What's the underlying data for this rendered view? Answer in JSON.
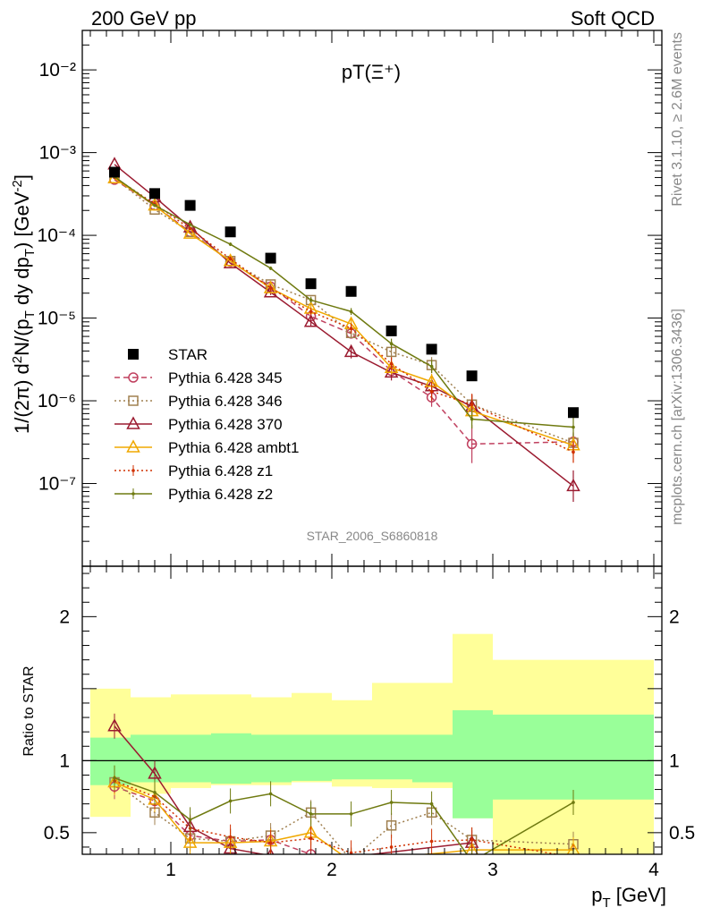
{
  "header": {
    "left": "200 GeV pp",
    "right": "Soft QCD"
  },
  "side_labels": {
    "rivet": "Rivet 3.1.10, ≥ 2.6M events",
    "mcplots": "mcplots.cern.ch [arXiv:1306.3436]"
  },
  "watermark": "STAR_2006_S6860818",
  "chart_data": [
    {
      "type": "scatter",
      "title": "pT(Ξ⁺)",
      "ylabel": "1/(2π) d²N/(p_T dy dp_T) [GeV⁻²]",
      "xlim": [
        0.45,
        4.05
      ],
      "ylim": [
        1e-08,
        0.03
      ],
      "yscale": "log",
      "x_ticks": [
        1,
        2,
        3,
        4
      ],
      "y_ticks": [
        {
          "v": 1e-07,
          "label": "10⁻⁷"
        },
        {
          "v": 1e-06,
          "label": "10⁻⁶"
        },
        {
          "v": 1e-05,
          "label": "10⁻⁵"
        },
        {
          "v": 0.0001,
          "label": "10⁻⁴"
        },
        {
          "v": 0.001,
          "label": "10⁻³"
        },
        {
          "v": 0.01,
          "label": "10⁻²"
        }
      ],
      "legend_position": "bottom-left",
      "star": {
        "name": "STAR",
        "x": [
          0.65,
          0.9,
          1.12,
          1.37,
          1.62,
          1.87,
          2.12,
          2.37,
          2.62,
          2.87,
          3.5
        ],
        "y": [
          0.00058,
          0.00032,
          0.00023,
          0.00011,
          5.3e-05,
          2.6e-05,
          2.1e-05,
          7e-06,
          4.2e-06,
          2e-06,
          7.2e-07
        ],
        "bins": [
          [
            0.5,
            0.75
          ],
          [
            0.75,
            1.0
          ],
          [
            1.0,
            1.25
          ],
          [
            1.25,
            1.5
          ],
          [
            1.5,
            1.75
          ],
          [
            1.75,
            2.0
          ],
          [
            2.0,
            2.25
          ],
          [
            2.25,
            2.5
          ],
          [
            2.5,
            2.75
          ],
          [
            2.75,
            3.0
          ],
          [
            3.0,
            4.0
          ]
        ]
      },
      "series": [
        {
          "name": "Pythia 6.428 345",
          "color": "#c0405f",
          "dash": "6,4",
          "marker": "circle",
          "x": [
            0.65,
            0.9,
            1.12,
            1.37,
            1.62,
            1.87,
            2.12,
            2.37,
            2.62,
            2.87,
            3.5
          ],
          "y": [
            0.00047,
            0.00023,
            0.00011,
            4.8e-05,
            2.4e-05,
            1.05e-05,
            6.5e-06,
            2.3e-06,
            1.1e-06,
            3e-07,
            3.2e-07
          ],
          "err": [
            0,
            0,
            0,
            0,
            0.1,
            0.1,
            0.15,
            0.2,
            0.3,
            0.7,
            0.3
          ]
        },
        {
          "name": "Pythia 6.428 346",
          "color": "#a08050",
          "dash": "2,3",
          "marker": "square",
          "x": [
            0.65,
            0.9,
            1.12,
            1.37,
            1.62,
            1.87,
            2.12,
            2.37,
            2.62,
            2.87,
            3.5
          ],
          "y": [
            0.00049,
            0.000205,
            0.00011,
            4.9e-05,
            2.55e-05,
            1.65e-05,
            6.6e-06,
            3.9e-06,
            2.7e-06,
            9e-07,
            3.1e-07
          ],
          "err": [
            0,
            0,
            0,
            0,
            0.08,
            0.1,
            0.15,
            0.25,
            0.25,
            0.3,
            0.3
          ]
        },
        {
          "name": "Pythia 6.428 370",
          "color": "#9b1b30",
          "dash": "",
          "marker": "triangle",
          "x": [
            0.65,
            0.9,
            1.12,
            1.37,
            1.62,
            1.87,
            2.12,
            2.37,
            2.62,
            2.87,
            3.5
          ],
          "y": [
            0.00072,
            0.00029,
            0.000125,
            4.6e-05,
            2.05e-05,
            9e-06,
            3.9e-06,
            2.2e-06,
            1.5e-06,
            8.5e-07,
            9.3e-08
          ],
          "err": [
            0,
            0,
            0,
            0,
            0.08,
            0.12,
            0.2,
            0.25,
            0.3,
            0.4,
            0.55
          ]
        },
        {
          "name": "Pythia 6.428 ambt1",
          "color": "#f0a800",
          "dash": "",
          "marker": "triangle",
          "x": [
            0.65,
            0.9,
            1.12,
            1.37,
            1.62,
            1.87,
            2.12,
            2.37,
            2.62,
            2.87,
            3.5
          ],
          "y": [
            0.00049,
            0.00023,
            0.000105,
            4.9e-05,
            2.3e-05,
            1.3e-05,
            8.5e-06,
            2.5e-06,
            1.7e-06,
            7.5e-07,
            2.9e-07
          ],
          "err": [
            0,
            0,
            0,
            0,
            0.08,
            0.1,
            0.15,
            0.2,
            0.25,
            0.35,
            0.3
          ]
        },
        {
          "name": "Pythia 6.428 z1",
          "color": "#d03000",
          "dash": "2,3",
          "marker": "dot",
          "x": [
            0.65,
            0.9,
            1.12,
            1.37,
            1.62,
            1.87,
            2.12,
            2.37,
            2.62,
            2.87,
            3.5
          ],
          "y": [
            0.0005,
            0.00024,
            0.00012,
            5.2e-05,
            2.3e-05,
            1.2e-05,
            7.5e-06,
            2.8e-06,
            1.3e-06,
            9e-07,
            2.4e-07
          ],
          "err": [
            0,
            0,
            0,
            0,
            0.08,
            0.1,
            0.15,
            0.2,
            0.3,
            0.35,
            0.35
          ]
        },
        {
          "name": "Pythia 6.428 z2",
          "color": "#6f7a10",
          "dash": "",
          "marker": "dot",
          "x": [
            0.65,
            0.9,
            1.12,
            1.37,
            1.62,
            1.87,
            2.12,
            2.37,
            2.62,
            2.87,
            3.5
          ],
          "y": [
            0.00051,
            0.00023,
            0.000135,
            7.8e-05,
            4e-05,
            1.65e-05,
            1.2e-05,
            4.9e-06,
            2.6e-06,
            6e-07,
            4.8e-07
          ],
          "err": [
            0,
            0,
            0,
            0.05,
            0.05,
            0.08,
            0.1,
            0.15,
            0.2,
            0.3,
            0.3
          ]
        }
      ]
    },
    {
      "type": "scatter",
      "title": "",
      "xlabel": "p_T [GeV]",
      "ylabel": "Ratio to STAR",
      "xlim": [
        0.45,
        4.05
      ],
      "ylim": [
        0.35,
        2.35
      ],
      "y_ticks": [
        {
          "v": 0.5,
          "label": "0.5"
        },
        {
          "v": 1,
          "label": "1"
        },
        {
          "v": 2,
          "label": "2"
        }
      ],
      "x_ticks": [
        1,
        2,
        3,
        4
      ],
      "bands": {
        "bins": [
          [
            0.5,
            0.75
          ],
          [
            0.75,
            1.0
          ],
          [
            1.0,
            1.25
          ],
          [
            1.25,
            1.5
          ],
          [
            1.5,
            1.75
          ],
          [
            1.75,
            2.0
          ],
          [
            2.0,
            2.25
          ],
          [
            2.25,
            2.5
          ],
          [
            2.5,
            2.75
          ],
          [
            2.75,
            3.0
          ],
          [
            3.0,
            4.0
          ]
        ],
        "yellow": [
          [
            0.61,
            1.5
          ],
          [
            0.77,
            1.44
          ],
          [
            0.81,
            1.46
          ],
          [
            0.83,
            1.46
          ],
          [
            0.83,
            1.44
          ],
          [
            0.85,
            1.47
          ],
          [
            0.82,
            1.42
          ],
          [
            0.81,
            1.54
          ],
          [
            0.81,
            1.54
          ],
          [
            0.6,
            1.88
          ],
          [
            0.35,
            1.7
          ]
        ],
        "green": [
          [
            0.83,
            1.16
          ],
          [
            0.85,
            1.18
          ],
          [
            0.85,
            1.18
          ],
          [
            0.84,
            1.19
          ],
          [
            0.85,
            1.18
          ],
          [
            0.86,
            1.18
          ],
          [
            0.87,
            1.18
          ],
          [
            0.87,
            1.18
          ],
          [
            0.85,
            1.18
          ],
          [
            0.6,
            1.35
          ],
          [
            0.73,
            1.32
          ]
        ]
      },
      "series": [
        {
          "name": "Pythia 6.428 345",
          "x": [
            0.65,
            0.9,
            1.12,
            1.37,
            1.62,
            1.87,
            2.12
          ],
          "y": [
            0.82,
            0.72,
            0.48,
            0.44,
            0.45,
            0.35,
            0.31
          ]
        },
        {
          "name": "Pythia 6.428 346",
          "x": [
            0.65,
            0.9,
            1.12,
            1.37,
            1.62,
            1.87,
            2.12,
            2.37,
            2.62,
            2.87,
            3.5
          ],
          "y": [
            0.85,
            0.64,
            0.46,
            0.44,
            0.48,
            0.64,
            0.31,
            0.55,
            0.64,
            0.45,
            0.42
          ]
        },
        {
          "name": "Pythia 6.428 370",
          "x": [
            0.65,
            0.9,
            1.12,
            1.37,
            1.62,
            1.87,
            2.87
          ],
          "y": [
            1.24,
            0.91,
            0.54,
            0.39,
            0.34,
            0.3,
            0.43
          ]
        },
        {
          "name": "Pythia 6.428 ambt1",
          "x": [
            0.65,
            0.9,
            1.12,
            1.37,
            1.62,
            1.87,
            2.12,
            2.87,
            3.5
          ],
          "y": [
            0.85,
            0.73,
            0.43,
            0.43,
            0.44,
            0.5,
            0.3,
            0.38,
            0.38
          ]
        },
        {
          "name": "Pythia 6.428 z1",
          "x": [
            0.65,
            0.9,
            1.12,
            1.37,
            1.62,
            1.87,
            2.12,
            2.37,
            2.62,
            2.87,
            3.5
          ],
          "y": [
            0.86,
            0.75,
            0.53,
            0.47,
            0.43,
            0.46,
            0.36,
            0.4,
            0.44,
            0.45,
            0.33
          ]
        },
        {
          "name": "Pythia 6.428 z2",
          "x": [
            0.65,
            0.9,
            1.12,
            1.37,
            1.62,
            1.87,
            2.12,
            2.37,
            2.62,
            2.87,
            3.5
          ],
          "y": [
            0.88,
            0.78,
            0.59,
            0.72,
            0.77,
            0.63,
            0.63,
            0.71,
            0.7,
            0.3,
            0.71
          ]
        }
      ]
    }
  ]
}
